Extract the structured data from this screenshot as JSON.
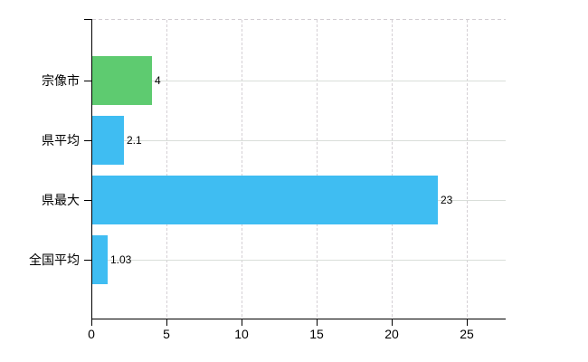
{
  "chart_data": {
    "type": "bar",
    "orientation": "horizontal",
    "title": "",
    "xlabel": "",
    "ylabel": "",
    "categories": [
      "宗像市",
      "県平均",
      "県最大",
      "全国平均"
    ],
    "values": [
      4,
      2.1,
      23,
      1.03
    ],
    "value_labels": [
      "4",
      "2.1",
      "23",
      "1.03"
    ],
    "bar_colors": [
      "#5ecb70",
      "#3fbdf2",
      "#3fbdf2",
      "#3fbdf2"
    ],
    "x_ticks": [
      0,
      5,
      10,
      15,
      20,
      25
    ],
    "x_tick_labels": [
      "0",
      "5",
      "10",
      "15",
      "20",
      "25"
    ],
    "xlim": [
      0,
      27.6
    ],
    "grid": true,
    "legend": "none",
    "colors": {
      "background": "#ffffff",
      "axis": "#000000",
      "grid_horizontal": "#d9ded9",
      "grid_vertical": "#d5d0d5",
      "top_border": "#d2cdd2",
      "text": "#000000"
    }
  }
}
